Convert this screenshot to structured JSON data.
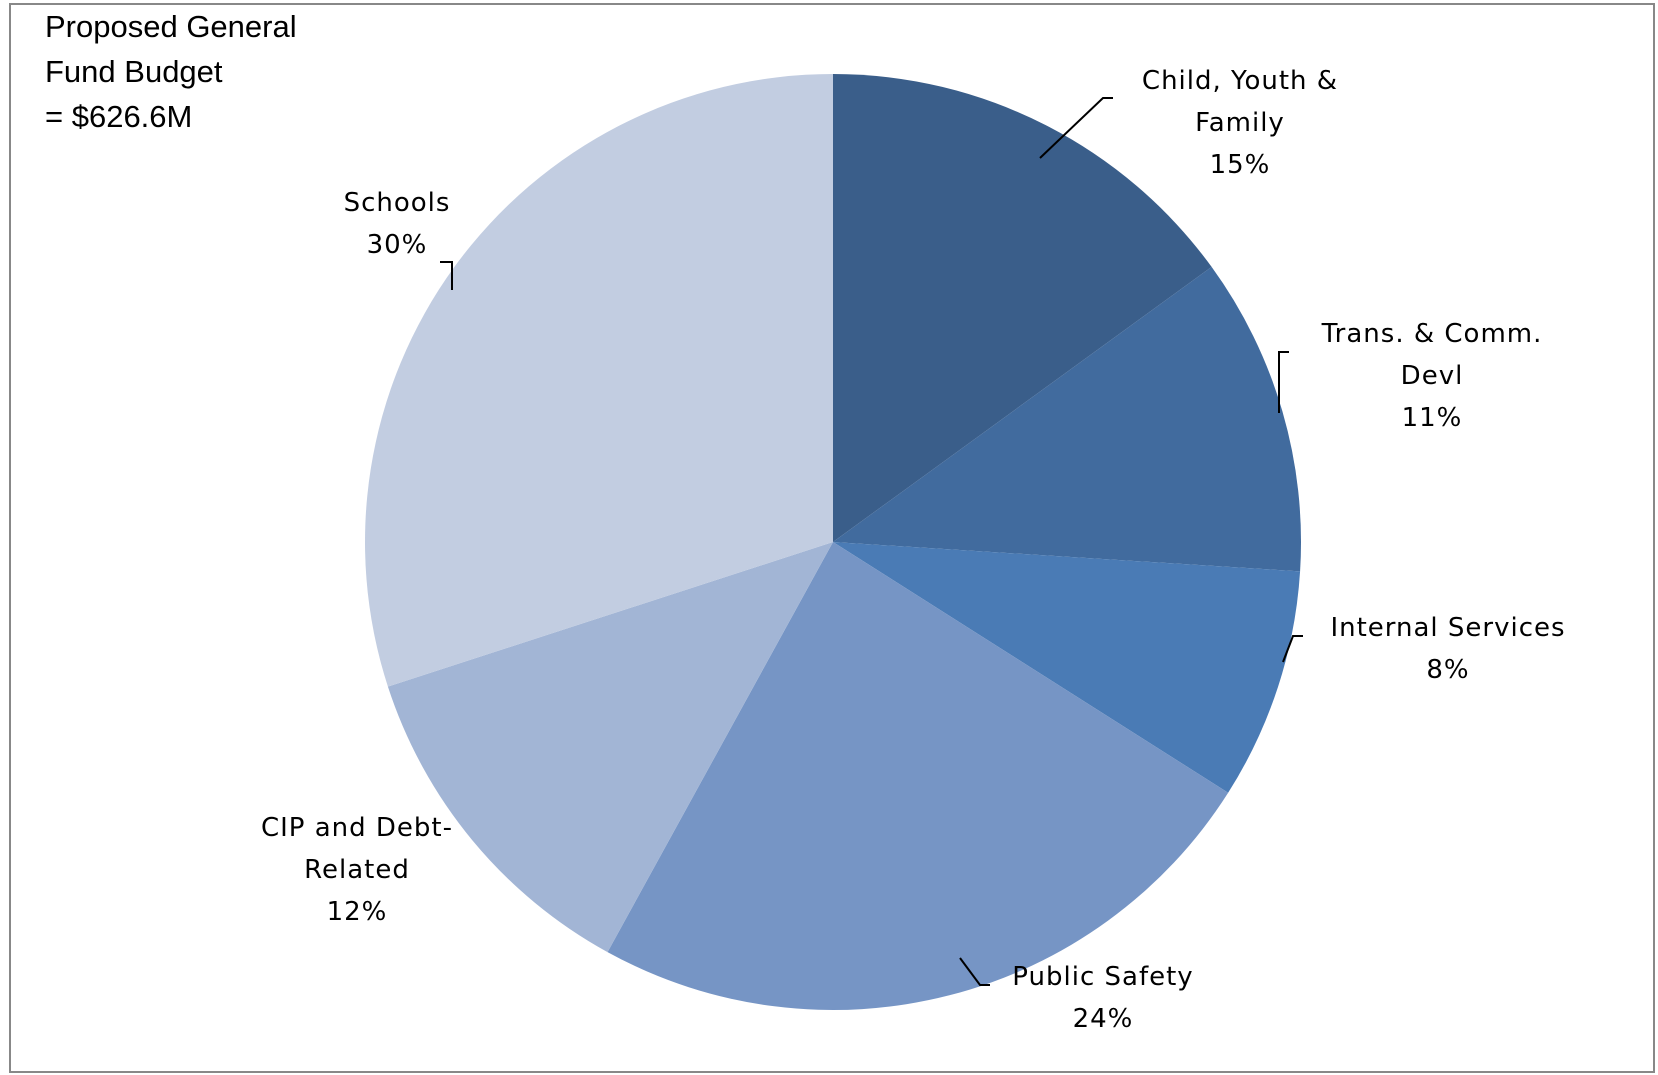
{
  "chart_data": {
    "type": "pie",
    "title_lines": [
      "Proposed General",
      "Fund Budget",
      "= $626.6M"
    ],
    "start_angle_deg": 0,
    "direction": "clockwise",
    "slices": [
      {
        "name_lines": [
          "Child, Youth &",
          "Family"
        ],
        "percent_label": "15%",
        "value": 15,
        "color": "#3a5e8a"
      },
      {
        "name_lines": [
          "Trans. & Comm.",
          "Devl"
        ],
        "percent_label": "11%",
        "value": 11,
        "color": "#416b9e"
      },
      {
        "name_lines": [
          "Internal Services"
        ],
        "percent_label": "8%",
        "value": 8,
        "color": "#4a7bb5"
      },
      {
        "name_lines": [
          "Public Safety"
        ],
        "percent_label": "24%",
        "value": 24,
        "color": "#7695c5"
      },
      {
        "name_lines": [
          "CIP and Debt-",
          "Related"
        ],
        "percent_label": "12%",
        "value": 12,
        "color": "#a2b5d5"
      },
      {
        "name_lines": [
          "Schools"
        ],
        "percent_label": "30%",
        "value": 30,
        "color": "#c2cde1"
      }
    ],
    "legend": "none",
    "border_color": "#888888"
  }
}
